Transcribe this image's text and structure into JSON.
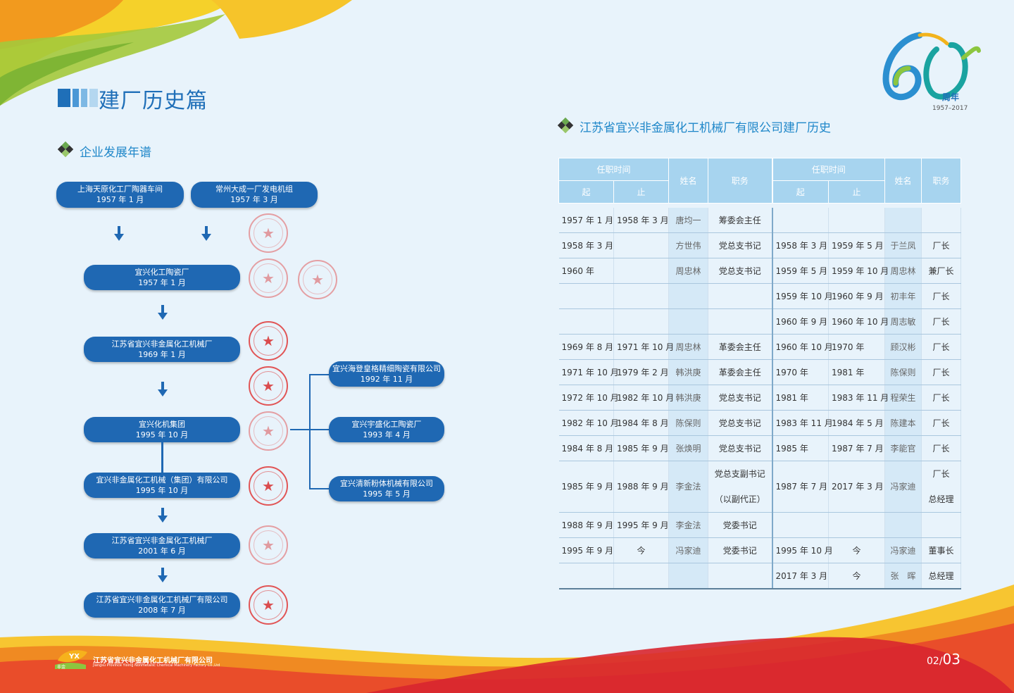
{
  "page_title": "建厂历史篇",
  "left_section_title": "企业发展年谱",
  "right_section_title": "江苏省宜兴非金属化工机械厂有限公司建厂历史",
  "logo": {
    "number": "60",
    "suffix": "周年",
    "years": "1957–2017"
  },
  "flow": {
    "origin_1": {
      "name": "上海天原化工厂陶器车间",
      "date": "1957 年 1 月"
    },
    "origin_2": {
      "name": "常州大成一厂发电机组",
      "date": "1957 年 3 月"
    },
    "main": [
      {
        "name": "宜兴化工陶瓷厂",
        "date": "1957 年 1 月"
      },
      {
        "name": "江苏省宜兴非金属化工机械厂",
        "date": "1969 年 1 月"
      },
      {
        "name": "宜兴化机集团",
        "date": "1995 年 10 月"
      },
      {
        "name": "宜兴非金属化工机械（集团）有限公司",
        "date": "1995 年 10 月"
      },
      {
        "name": "江苏省宜兴非金属化工机械厂",
        "date": "2001 年 6 月"
      },
      {
        "name": "江苏省宜兴非金属化工机械厂有限公司",
        "date": "2008 年 7 月"
      }
    ],
    "branches": [
      {
        "name": "宜兴海登皇格精细陶瓷有限公司",
        "date": "1992 年 11 月"
      },
      {
        "name": "宜兴宇盛化工陶瓷厂",
        "date": "1993 年 4 月"
      },
      {
        "name": "宜兴清新粉体机械有限公司",
        "date": "1995 年 5 月"
      }
    ]
  },
  "table": {
    "group_header": "任职时间",
    "start_header": "起",
    "end_header": "止",
    "name_header": "姓名",
    "role_header": "职务",
    "rows": [
      {
        "l": [
          "1957 年 1 月",
          "1958 年 3 月",
          "唐均一",
          "筹委会主任"
        ],
        "r": [
          "",
          "",
          "",
          ""
        ]
      },
      {
        "l": [
          "1958 年 3 月",
          "",
          "方世伟",
          "党总支书记"
        ],
        "r": [
          "1958 年 3 月",
          "1959 年 5 月",
          "于兰凤",
          "厂长"
        ]
      },
      {
        "l": [
          "1960 年",
          "",
          "周忠林",
          "党总支书记"
        ],
        "r": [
          "1959 年 5 月",
          "1959 年 10 月",
          "周忠林",
          "兼厂长"
        ]
      },
      {
        "l": [
          "",
          "",
          "",
          ""
        ],
        "r": [
          "1959 年 10 月",
          "1960 年 9 月",
          "初丰年",
          "厂长"
        ]
      },
      {
        "l": [
          "",
          "",
          "",
          ""
        ],
        "r": [
          "1960 年 9 月",
          "1960 年 10 月",
          "周志敏",
          "厂长"
        ]
      },
      {
        "l": [
          "1969 年 8 月",
          "1971 年 10 月",
          "周忠林",
          "革委会主任"
        ],
        "r": [
          "1960 年 10 月",
          "1970 年",
          "顾汉彬",
          "厂长"
        ]
      },
      {
        "l": [
          "1971 年 10 月",
          "1979 年 2 月",
          "韩洪庚",
          "革委会主任"
        ],
        "r": [
          "1970 年",
          "1981 年",
          "陈保则",
          "厂长"
        ]
      },
      {
        "l": [
          "1972 年 10 月",
          "1982 年 10 月",
          "韩洪庚",
          "党总支书记"
        ],
        "r": [
          "1981 年",
          "1983 年 11 月",
          "程荣生",
          "厂长"
        ]
      },
      {
        "l": [
          "1982 年 10 月",
          "1984 年 8 月",
          "陈保则",
          "党总支书记"
        ],
        "r": [
          "1983 年 11 月",
          "1984 年 5 月",
          "陈建本",
          "厂长"
        ]
      },
      {
        "l": [
          "1984 年 8 月",
          "1985 年 9 月",
          "张焕明",
          "党总支书记"
        ],
        "r": [
          "1985 年",
          "1987 年 7 月",
          "李能官",
          "厂长"
        ]
      },
      {
        "l": [
          "1985 年 9 月",
          "1988 年 9 月",
          "李金法",
          "党总支副书记",
          "（以副代正）"
        ],
        "r": [
          "1987 年 7 月",
          "2017 年 3 月",
          "冯家迪",
          "厂长",
          "总经理"
        ]
      },
      {
        "l": [
          "1988 年 9 月",
          "1995 年 9 月",
          "李金法",
          "党委书记"
        ],
        "r": [
          "",
          "",
          "",
          ""
        ]
      },
      {
        "l": [
          "1995 年 9 月",
          "今",
          "冯家迪",
          "党委书记"
        ],
        "r": [
          "1995 年 10 月",
          "今",
          "冯家迪",
          "董事长"
        ]
      },
      {
        "l": [
          "",
          "",
          "",
          ""
        ],
        "r": [
          "2017 年 3 月",
          "今",
          "张　晖",
          "总经理"
        ]
      }
    ]
  },
  "footer": {
    "logo_mark": "YX",
    "logo_tag": "非金",
    "company_cn": "江苏省宜兴非金属化工机械厂有限公司",
    "company_en": "Jiangsu Province Yixing Nonmetallic Chemical Machinery Factory Co.,Ltd",
    "page_prefix": "02/",
    "page_main": "03"
  },
  "colors": {
    "primary": "#1f68b3",
    "section": "#1f87c9",
    "table_header": "#a7d4ef",
    "name_col": "#d5e9f7"
  }
}
